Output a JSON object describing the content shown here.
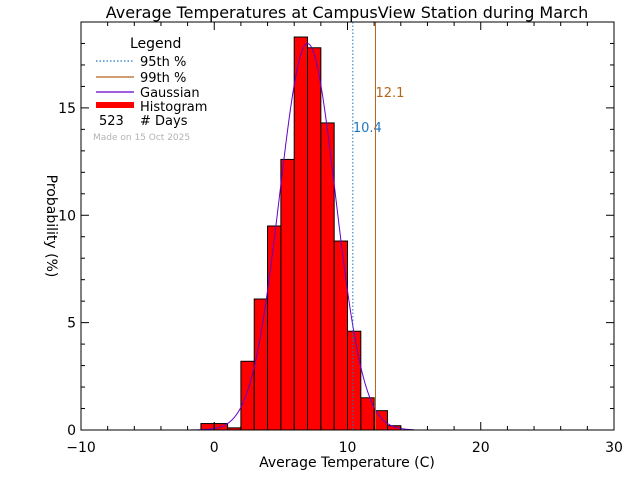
{
  "chart_data": {
    "type": "bar",
    "title": "Average Temperatures at CampusView Station during March",
    "xlabel": "Average Temperature (C)",
    "ylabel": "Probability (%)",
    "xlim": [
      -10,
      30
    ],
    "ylim": [
      0,
      19
    ],
    "xticks": [
      -10,
      0,
      10,
      20,
      30
    ],
    "yticks": [
      0,
      5,
      10,
      15
    ],
    "grid": false,
    "legend_position": "top-left",
    "bin_width": 1,
    "histogram": {
      "name": "Histogram",
      "color": "#ff0000",
      "bins": [
        {
          "x0": -1,
          "x1": 0,
          "value": 0.3
        },
        {
          "x0": 0,
          "x1": 1,
          "value": 0.3
        },
        {
          "x0": 1,
          "x1": 2,
          "value": 0.1
        },
        {
          "x0": 2,
          "x1": 3,
          "value": 3.2
        },
        {
          "x0": 3,
          "x1": 4,
          "value": 6.1
        },
        {
          "x0": 4,
          "x1": 5,
          "value": 9.5
        },
        {
          "x0": 5,
          "x1": 6,
          "value": 12.6
        },
        {
          "x0": 6,
          "x1": 7,
          "value": 18.3
        },
        {
          "x0": 7,
          "x1": 8,
          "value": 17.8
        },
        {
          "x0": 8,
          "x1": 9,
          "value": 14.3
        },
        {
          "x0": 9,
          "x1": 10,
          "value": 8.8
        },
        {
          "x0": 10,
          "x1": 11,
          "value": 4.6
        },
        {
          "x0": 11,
          "x1": 12,
          "value": 1.5
        },
        {
          "x0": 12,
          "x1": 13,
          "value": 0.9
        },
        {
          "x0": 13,
          "x1": 14,
          "value": 0.2
        }
      ]
    },
    "gaussian": {
      "name": "Gaussian",
      "color": "#6600cc",
      "mean": 7.0,
      "sigma": 2.1,
      "peak": 18.0
    },
    "percentiles": [
      {
        "name": "95th %",
        "value": 10.4,
        "label": "10.4",
        "color": "#1f77c4",
        "style": "dotted"
      },
      {
        "name": "99th %",
        "value": 12.1,
        "label": "12.1",
        "color": "#b5651d",
        "style": "solid"
      }
    ],
    "legend": {
      "title": "Legend",
      "count_value": "523",
      "count_label": "# Days"
    },
    "annotation": "Made on 15 Oct 2025"
  }
}
